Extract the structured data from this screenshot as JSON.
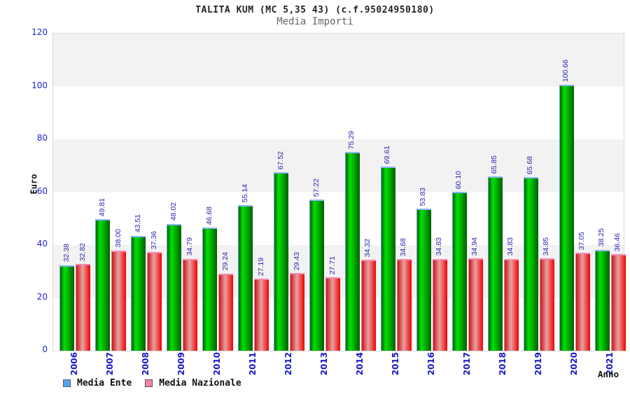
{
  "chart_data": {
    "type": "bar",
    "title": "TALITA KUM (MC 5,35 43) (c.f.95024950180)",
    "subtitle": "Media Importi",
    "xlabel": "Anno",
    "ylabel": "Euro",
    "ylim": [
      0,
      120
    ],
    "yticks": [
      0,
      20,
      40,
      60,
      80,
      100,
      120
    ],
    "grid": "alternating horizontal bands every 20 units",
    "legend_position": "bottom-left",
    "categories": [
      "2006",
      "2007",
      "2008",
      "2009",
      "2010",
      "2011",
      "2012",
      "2013",
      "2014",
      "2015",
      "2016",
      "2017",
      "2018",
      "2019",
      "2020",
      "2021"
    ],
    "series": [
      {
        "name": "Media Ente",
        "bar_style": "green gradient cylinder",
        "values": [
          32.38,
          49.81,
          43.51,
          48.02,
          46.68,
          55.14,
          67.52,
          57.22,
          75.29,
          69.61,
          53.83,
          60.1,
          65.85,
          65.68,
          100.66,
          38.25
        ]
      },
      {
        "name": "Media Nazionale",
        "bar_style": "red gradient cylinder",
        "values": [
          32.82,
          38.0,
          37.36,
          34.79,
          29.24,
          27.19,
          29.43,
          27.71,
          34.32,
          34.68,
          34.83,
          34.94,
          34.83,
          34.85,
          37.05,
          36.46
        ]
      }
    ]
  },
  "colors": {
    "legend_blue": "#58a0e8",
    "legend_pink": "#ee86ae",
    "bar_green_bright": "#00e000",
    "bar_red_bright": "#f20000",
    "value_label": "#2a2ab0",
    "axis_label": "#2222cc",
    "band_gray": "#f2f2f2",
    "plot_border": "#d9d9d9"
  }
}
